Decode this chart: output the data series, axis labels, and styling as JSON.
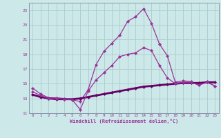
{
  "xlabel": "Windchill (Refroidissement éolien,°C)",
  "background_color": "#cce8e8",
  "grid_color": "#aacccc",
  "line_color": "#993399",
  "line_color2": "#660066",
  "xlim": [
    -0.5,
    23.5
  ],
  "ylim": [
    11,
    26
  ],
  "yticks": [
    11,
    13,
    15,
    17,
    19,
    21,
    23,
    25
  ],
  "xticks": [
    0,
    1,
    2,
    3,
    4,
    5,
    6,
    7,
    8,
    9,
    10,
    11,
    12,
    13,
    14,
    15,
    16,
    17,
    18,
    19,
    20,
    21,
    22,
    23
  ],
  "line1_x": [
    0,
    1,
    2,
    3,
    4,
    5,
    6,
    7,
    8,
    9,
    10,
    11,
    12,
    13,
    14,
    15,
    16,
    17,
    18,
    19,
    20,
    21,
    22,
    23
  ],
  "line1_y": [
    14.4,
    13.6,
    13.1,
    13.1,
    13.0,
    12.8,
    12.6,
    14.2,
    17.6,
    19.4,
    20.5,
    21.6,
    23.5,
    24.1,
    25.2,
    23.2,
    20.4,
    18.8,
    15.2,
    15.4,
    15.3,
    14.8,
    15.3,
    14.7
  ],
  "line2_x": [
    0,
    1,
    2,
    3,
    4,
    5,
    6,
    7,
    8,
    9,
    10,
    11,
    12,
    13,
    14,
    15,
    16,
    17,
    18,
    19,
    20,
    21,
    22,
    23
  ],
  "line2_y": [
    13.5,
    13.2,
    13.0,
    12.9,
    12.9,
    12.9,
    13.0,
    13.2,
    13.4,
    13.6,
    13.8,
    14.0,
    14.2,
    14.4,
    14.6,
    14.7,
    14.8,
    14.9,
    15.0,
    15.1,
    15.1,
    15.1,
    15.2,
    15.2
  ],
  "line3_x": [
    0,
    1,
    2,
    3,
    4,
    5,
    6,
    7,
    8,
    9,
    10,
    11,
    12,
    13,
    14,
    15,
    16,
    17,
    18,
    19,
    20,
    21,
    22,
    23
  ],
  "line3_y": [
    13.9,
    13.4,
    13.0,
    13.0,
    12.9,
    12.8,
    11.5,
    14.0,
    15.5,
    16.5,
    17.5,
    18.7,
    19.0,
    19.2,
    19.9,
    19.5,
    17.5,
    15.8,
    15.0,
    15.2,
    15.2,
    14.8,
    15.2,
    14.7
  ],
  "marker": "D",
  "markersize": 2.0,
  "linewidth1": 0.9,
  "linewidth2": 2.0,
  "linewidth3": 0.9
}
